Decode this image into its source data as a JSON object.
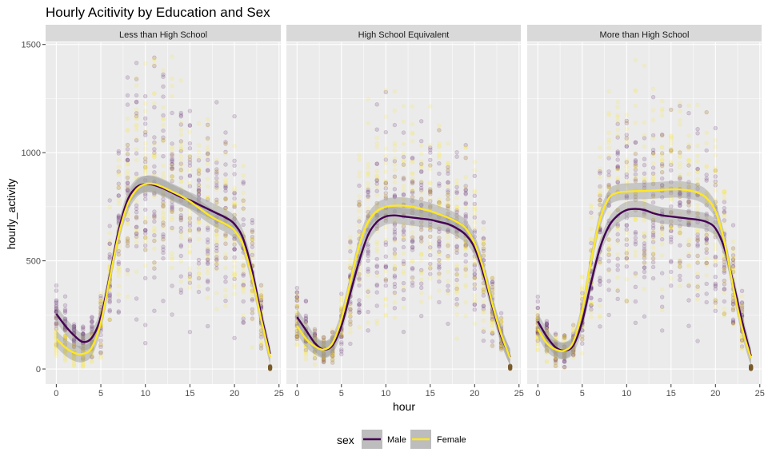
{
  "chart_data": {
    "type": "scatter",
    "title": "Hourly Acitivity by Education and Sex",
    "xlabel": "hour",
    "ylabel": "hourly_activity",
    "xlim": [
      -1.2,
      25.2
    ],
    "ylim": [
      -70,
      1510
    ],
    "x_ticks": [
      0,
      5,
      10,
      15,
      20,
      25
    ],
    "y_ticks": [
      0,
      500,
      1000,
      1500
    ],
    "grid": true,
    "legend": {
      "title": "sex",
      "position": "bottom",
      "entries": [
        {
          "name": "Male",
          "color": "#440154"
        },
        {
          "name": "Female",
          "color": "#FDE725"
        }
      ]
    },
    "colors": {
      "male": "#440154",
      "female": "#FDE725",
      "panel_bg": "#EBEBEB",
      "strip_bg": "#D9D9D9",
      "grid": "#FFFFFF",
      "ribbon": "#999999"
    },
    "facets": [
      {
        "label": "Less than High School",
        "series": [
          {
            "name": "Male",
            "x": [
              0,
              1,
              2,
              3,
              4,
              5,
              6,
              7,
              8,
              9,
              10,
              11,
              12,
              13,
              14,
              15,
              16,
              17,
              18,
              19,
              20,
              21,
              22,
              23,
              24
            ],
            "y": [
              255,
              200,
              155,
              125,
              145,
              240,
              430,
              640,
              780,
              840,
              855,
              850,
              835,
              815,
              795,
              780,
              760,
              740,
              720,
              700,
              670,
              600,
              450,
              250,
              70
            ]
          },
          {
            "name": "Female",
            "x": [
              0,
              1,
              2,
              3,
              4,
              5,
              6,
              7,
              8,
              9,
              10,
              11,
              12,
              13,
              14,
              15,
              16,
              17,
              18,
              19,
              20,
              21,
              22,
              23,
              24
            ],
            "y": [
              140,
              100,
              75,
              70,
              100,
              215,
              420,
              620,
              760,
              830,
              855,
              855,
              840,
              820,
              800,
              775,
              745,
              715,
              690,
              670,
              640,
              570,
              420,
              230,
              55
            ]
          }
        ]
      },
      {
        "label": "High School Equivalent",
        "series": [
          {
            "name": "Male",
            "x": [
              0,
              1,
              2,
              3,
              4,
              5,
              6,
              7,
              8,
              9,
              10,
              11,
              12,
              13,
              14,
              15,
              16,
              17,
              18,
              19,
              20,
              21,
              22,
              23,
              24
            ],
            "y": [
              240,
              180,
              120,
              90,
              110,
              200,
              350,
              500,
              620,
              680,
              705,
              710,
              705,
              700,
              695,
              690,
              680,
              670,
              650,
              620,
              560,
              440,
              290,
              150,
              55
            ]
          },
          {
            "name": "Female",
            "x": [
              0,
              1,
              2,
              3,
              4,
              5,
              6,
              7,
              8,
              9,
              10,
              11,
              12,
              13,
              14,
              15,
              16,
              17,
              18,
              19,
              20,
              21,
              22,
              23,
              24
            ],
            "y": [
              200,
              140,
              105,
              90,
              120,
              230,
              400,
              570,
              680,
              730,
              750,
              755,
              755,
              750,
              740,
              730,
              715,
              700,
              680,
              650,
              580,
              460,
              300,
              160,
              50
            ]
          }
        ]
      },
      {
        "label": "More than High School",
        "series": [
          {
            "name": "Male",
            "x": [
              0,
              1,
              2,
              3,
              4,
              5,
              6,
              7,
              8,
              9,
              10,
              11,
              12,
              13,
              14,
              15,
              16,
              17,
              18,
              19,
              20,
              21,
              22,
              23,
              24
            ],
            "y": [
              220,
              150,
              100,
              85,
              110,
              220,
              400,
              560,
              660,
              710,
              735,
              740,
              735,
              720,
              710,
              705,
              700,
              695,
              690,
              680,
              650,
              560,
              400,
              220,
              60
            ]
          },
          {
            "name": "Female",
            "x": [
              0,
              1,
              2,
              3,
              4,
              5,
              6,
              7,
              8,
              9,
              10,
              11,
              12,
              13,
              14,
              15,
              16,
              17,
              18,
              19,
              20,
              21,
              22,
              23,
              24
            ],
            "y": [
              185,
              120,
              90,
              85,
              125,
              270,
              500,
              690,
              790,
              815,
              820,
              822,
              823,
              825,
              828,
              830,
              830,
              825,
              815,
              790,
              730,
              590,
              380,
              190,
              50
            ]
          }
        ]
      }
    ]
  }
}
